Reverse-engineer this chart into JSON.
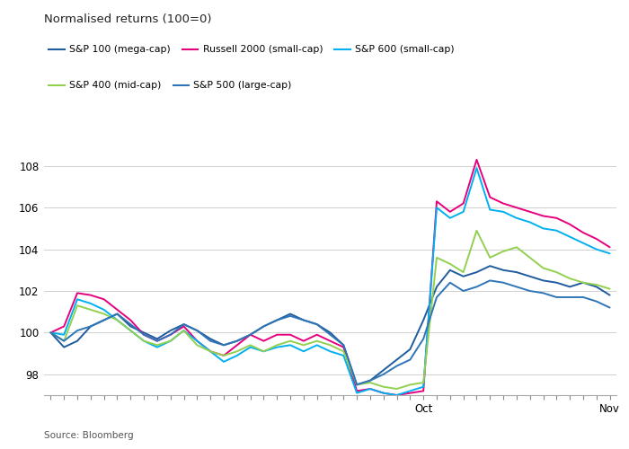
{
  "title": "Normalised returns (100=0)",
  "source": "Source: Bloomberg",
  "ylabel_ticks": [
    98,
    100,
    102,
    104,
    106,
    108
  ],
  "ylim": [
    97.0,
    109.5
  ],
  "n_points": 43,
  "oct_index": 28,
  "nov_index": 42,
  "series": {
    "S&P 100 (mega-cap)": {
      "color": "#1f5c9e",
      "linewidth": 1.4,
      "values": [
        100.0,
        99.3,
        99.6,
        100.3,
        100.6,
        100.9,
        100.3,
        100.0,
        99.7,
        100.1,
        100.4,
        100.1,
        99.7,
        99.4,
        99.6,
        99.9,
        100.3,
        100.6,
        100.9,
        100.6,
        100.4,
        100.0,
        99.4,
        97.5,
        97.7,
        98.2,
        98.7,
        99.2,
        100.6,
        102.2,
        103.0,
        102.7,
        102.9,
        103.2,
        103.0,
        102.9,
        102.7,
        102.5,
        102.4,
        102.2,
        102.4,
        102.2,
        101.8
      ]
    },
    "Russell 2000 (small-cap)": {
      "color": "#e6007e",
      "linewidth": 1.4,
      "values": [
        100.0,
        100.3,
        101.9,
        101.8,
        101.6,
        101.1,
        100.6,
        99.9,
        99.6,
        99.9,
        100.3,
        99.6,
        99.1,
        98.9,
        99.4,
        99.9,
        99.6,
        99.9,
        99.9,
        99.6,
        99.9,
        99.6,
        99.3,
        97.2,
        97.3,
        97.1,
        97.0,
        97.1,
        97.2,
        106.3,
        105.8,
        106.2,
        108.3,
        106.5,
        106.2,
        106.0,
        105.8,
        105.6,
        105.5,
        105.2,
        104.8,
        104.5,
        104.1
      ]
    },
    "S&P 600 (small-cap)": {
      "color": "#00b0f0",
      "linewidth": 1.4,
      "values": [
        100.0,
        99.9,
        101.6,
        101.4,
        101.1,
        100.6,
        100.1,
        99.6,
        99.3,
        99.6,
        100.1,
        99.6,
        99.1,
        98.6,
        98.9,
        99.3,
        99.1,
        99.3,
        99.4,
        99.1,
        99.4,
        99.1,
        98.9,
        97.1,
        97.3,
        97.1,
        97.0,
        97.2,
        97.4,
        106.0,
        105.5,
        105.8,
        107.9,
        105.9,
        105.8,
        105.5,
        105.3,
        105.0,
        104.9,
        104.6,
        104.3,
        104.0,
        103.8
      ]
    },
    "S&P 400 (mid-cap)": {
      "color": "#92d050",
      "linewidth": 1.4,
      "values": [
        100.0,
        99.6,
        101.3,
        101.1,
        100.9,
        100.6,
        100.1,
        99.6,
        99.4,
        99.6,
        100.1,
        99.4,
        99.1,
        98.9,
        99.1,
        99.4,
        99.1,
        99.4,
        99.6,
        99.4,
        99.6,
        99.4,
        99.1,
        97.5,
        97.6,
        97.4,
        97.3,
        97.5,
        97.6,
        103.6,
        103.3,
        102.9,
        104.9,
        103.6,
        103.9,
        104.1,
        103.6,
        103.1,
        102.9,
        102.6,
        102.4,
        102.3,
        102.1
      ]
    },
    "S&P 500 (large-cap)": {
      "color": "#2e75b6",
      "linewidth": 1.4,
      "values": [
        100.0,
        99.6,
        100.1,
        100.3,
        100.6,
        100.9,
        100.4,
        99.9,
        99.6,
        99.9,
        100.4,
        100.1,
        99.6,
        99.4,
        99.6,
        99.9,
        100.3,
        100.6,
        100.8,
        100.6,
        100.4,
        99.9,
        99.4,
        97.5,
        97.7,
        98.0,
        98.4,
        98.7,
        99.7,
        101.7,
        102.4,
        102.0,
        102.2,
        102.5,
        102.4,
        102.2,
        102.0,
        101.9,
        101.7,
        101.7,
        101.7,
        101.5,
        101.2
      ]
    }
  },
  "background_color": "#ffffff",
  "grid_color": "#d0d0d0",
  "title_fontsize": 9.5,
  "legend_fontsize": 7.8,
  "tick_fontsize": 8.5
}
